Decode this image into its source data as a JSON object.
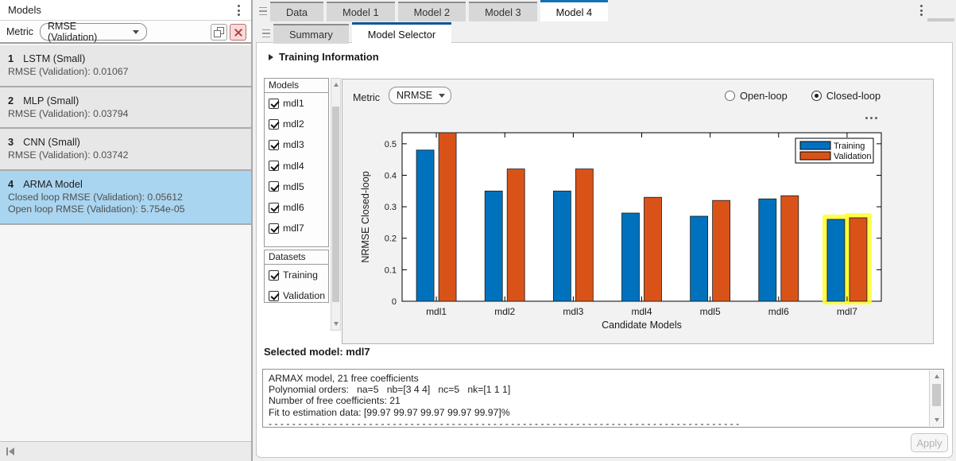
{
  "left_panel": {
    "title": "Models",
    "metric_label": "Metric",
    "metric_value": "RMSE (Validation)",
    "icons": [
      "kebab-menu-icon",
      "copy-icon",
      "close-icon",
      "collapse-panel-icon"
    ],
    "models": [
      {
        "index": "1",
        "name": "LSTM (Small)",
        "lines": [
          "RMSE (Validation): 0.01067"
        ],
        "selected": false
      },
      {
        "index": "2",
        "name": "MLP (Small)",
        "lines": [
          "RMSE (Validation): 0.03794"
        ],
        "selected": false
      },
      {
        "index": "3",
        "name": "CNN (Small)",
        "lines": [
          "RMSE (Validation): 0.03742"
        ],
        "selected": false
      },
      {
        "index": "4",
        "name": "ARMA Model",
        "lines": [
          "Closed loop RMSE (Validation): 0.05612",
          "Open loop RMSE (Validation): 5.754e-05"
        ],
        "selected": true
      }
    ],
    "selection_color": "#aad5f0"
  },
  "tabs": {
    "document_tabs": [
      {
        "label": "Data",
        "active": false
      },
      {
        "label": "Model 1",
        "active": false
      },
      {
        "label": "Model 2",
        "active": false
      },
      {
        "label": "Model 3",
        "active": false
      },
      {
        "label": "Model 4",
        "active": true
      }
    ],
    "sub_tabs": [
      {
        "label": "Summary",
        "active": false
      },
      {
        "label": "Model Selector",
        "active": true
      }
    ],
    "active_tab_accent": "#1272b6"
  },
  "model_selector": {
    "training_info_label": "Training Information",
    "models_box": {
      "title": "Models",
      "items": [
        {
          "label": "mdl1",
          "checked": true
        },
        {
          "label": "mdl2",
          "checked": true
        },
        {
          "label": "mdl3",
          "checked": true
        },
        {
          "label": "mdl4",
          "checked": true
        },
        {
          "label": "mdl5",
          "checked": true
        },
        {
          "label": "mdl6",
          "checked": true
        },
        {
          "label": "mdl7",
          "checked": true
        }
      ]
    },
    "datasets_box": {
      "title": "Datasets",
      "items": [
        {
          "label": "Training",
          "checked": true
        },
        {
          "label": "Validation",
          "checked": true
        }
      ]
    },
    "metric_label": "Metric",
    "metric_value": "NRMSE",
    "radios": [
      {
        "label": "Open-loop",
        "selected": false
      },
      {
        "label": "Closed-loop",
        "selected": true
      }
    ],
    "selected_model_label": "Selected model: mdl7",
    "details_lines": [
      "ARMAX model, 21 free coefficients",
      "Polynomial orders:   na=5   nb=[3 4 4]   nc=5   nk=[1 1 1]",
      "Number of free coefficients: 21",
      "Fit to estimation data: [99.97 99.97 99.97 99.97 99.97]%",
      "- - - - - - - - - - - - - - - - - - - - - - - - - - - - - - - - - - - - - - - - - - - - - - - - - - - - - - - - - - - - - - - - - - - - - - - - - - - - - - - - "
    ],
    "apply_label": "Apply"
  },
  "chart_data": {
    "type": "bar",
    "title": "",
    "categories": [
      "mdl1",
      "mdl2",
      "mdl3",
      "mdl4",
      "mdl5",
      "mdl6",
      "mdl7"
    ],
    "series": [
      {
        "name": "Training",
        "color": "#0072BD",
        "values": [
          0.48,
          0.35,
          0.35,
          0.28,
          0.27,
          0.325,
          0.26
        ]
      },
      {
        "name": "Validation",
        "color": "#D95319",
        "values": [
          0.6,
          0.42,
          0.42,
          0.33,
          0.32,
          0.335,
          0.265
        ]
      }
    ],
    "xlabel": "Candidate Models",
    "ylabel": "NRMSE Closed-loop",
    "ylim": [
      0,
      0.535
    ],
    "yticks": [
      0,
      0.1,
      0.2,
      0.3,
      0.4,
      0.5
    ],
    "grid": false,
    "legend_position": "northeast",
    "highlighted_category": "mdl7",
    "highlight_color": "#ffff2e",
    "note": "Validation bar for mdl1 is clipped at the top of the axes"
  }
}
